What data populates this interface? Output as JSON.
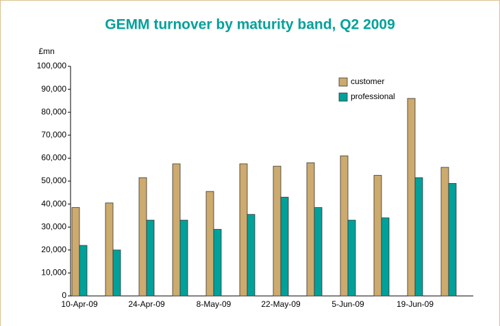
{
  "chart_data": {
    "type": "bar",
    "title": "GEMM turnover by maturity band, Q2 2009",
    "y_unit": "£mn",
    "categories": [
      "10-Apr-09",
      null,
      "24-Apr-09",
      null,
      "8-May-09",
      null,
      "22-May-09",
      null,
      "5-Jun-09",
      null,
      "19-Jun-09",
      null
    ],
    "series": [
      {
        "name": "customer",
        "color": "#cdaa6d",
        "values": [
          38500,
          40500,
          51500,
          57500,
          45500,
          57500,
          56500,
          58000,
          61000,
          52500,
          86000,
          56000
        ]
      },
      {
        "name": "professional",
        "color": "#00a19a",
        "values": [
          22000,
          20000,
          33000,
          33000,
          29000,
          35500,
          43000,
          38500,
          33000,
          34000,
          51500,
          49000
        ]
      }
    ],
    "ylim": [
      0,
      100000
    ],
    "yticks": [
      0,
      {
        "value": 10000,
        "label": "10,000"
      },
      {
        "value": 20000,
        "label": "20,000"
      },
      {
        "value": 30000,
        "label": "30,000"
      },
      {
        "value": 40000,
        "label": "40,000"
      },
      {
        "value": 50000,
        "label": "50,000"
      },
      {
        "value": 60000,
        "label": "60,000"
      },
      {
        "value": 70000,
        "label": "70,000"
      },
      {
        "value": 80000,
        "label": "80,000"
      },
      {
        "value": 90000,
        "label": "90,000"
      },
      {
        "value": 100000,
        "label": "100,000"
      }
    ],
    "legend": "upper right",
    "grid": false
  }
}
